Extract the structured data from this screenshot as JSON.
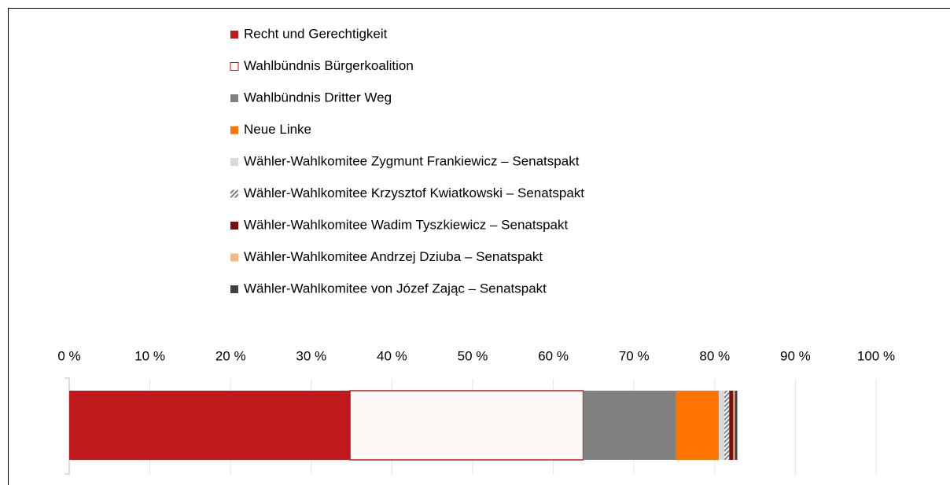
{
  "chart_data": {
    "type": "stacked-bar-horizontal",
    "series": [
      {
        "name": "Recht und Gerechtigkeit",
        "color": "#c0191c",
        "values": [
          34.8
        ]
      },
      {
        "name": "Wahlbündnis Bürgerkoalition",
        "color": "#fdf8f5",
        "stroke": "#c0191c",
        "values": [
          28.9
        ]
      },
      {
        "name": "Wahlbündnis Dritter Weg",
        "color": "#808080",
        "values": [
          11.5
        ]
      },
      {
        "name": "Neue Linke",
        "color": "#ff7300",
        "values": [
          5.3
        ]
      },
      {
        "name": "Wähler-Wahlkomitee Zygmunt Frankiewicz – Senatspakt",
        "color": "#d9d9d9",
        "values": [
          0.7
        ]
      },
      {
        "name": "Wähler-Wahlkomitee Krzysztof Kwiatkowski – Senatspakt",
        "color": "#a6a6a6",
        "pattern": "diagonal",
        "values": [
          0.6
        ]
      },
      {
        "name": "Wähler-Wahlkomitee Wadim Tyszkiewicz – Senatspakt",
        "color": "#7b0f12",
        "values": [
          0.5
        ]
      },
      {
        "name": "Wähler-Wahlkomitee Andrzej Dziuba – Senatspakt",
        "color": "#fbb57e",
        "values": [
          0.2
        ]
      },
      {
        "name": "Wähler-Wahlkomitee von Józef Zając – Senatspakt",
        "color": "#404040",
        "values": [
          0.3
        ]
      }
    ],
    "xlim": [
      0,
      100
    ],
    "xticks": [
      {
        "value": 0,
        "label": "0 %"
      },
      {
        "value": 10,
        "label": "10 %"
      },
      {
        "value": 20,
        "label": "20 %"
      },
      {
        "value": 30,
        "label": "30 %"
      },
      {
        "value": 40,
        "label": "40 %"
      },
      {
        "value": 50,
        "label": "50 %"
      },
      {
        "value": 60,
        "label": "60 %"
      },
      {
        "value": 70,
        "label": "70 %"
      },
      {
        "value": 80,
        "label": "80 %"
      },
      {
        "value": 90,
        "label": "90 %"
      },
      {
        "value": 100,
        "label": "100 %"
      }
    ],
    "grid": true,
    "legend": "top"
  }
}
